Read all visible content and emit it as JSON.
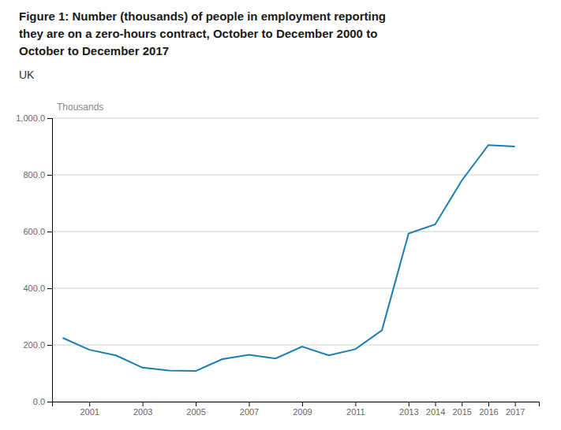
{
  "chart_data": {
    "type": "line",
    "title": [
      "Figure 1: Number (thousands) of people in employment reporting",
      "they are on a zero-hours contract, October to December 2000 to",
      "October to December 2017"
    ],
    "subtitle": "UK",
    "ylabel": "Thousands",
    "x": [
      2000,
      2001,
      2002,
      2003,
      2004,
      2005,
      2006,
      2007,
      2008,
      2009,
      2010,
      2011,
      2012,
      2013,
      2014,
      2015,
      2016,
      2017
    ],
    "values": [
      225,
      183,
      163,
      120,
      110,
      108,
      150,
      165,
      152,
      194,
      163,
      185,
      252,
      593,
      625,
      780,
      905,
      900
    ],
    "color": "#1b7db5",
    "xlim": [
      1999.6,
      2017.9
    ],
    "xticks": [
      2001,
      2003,
      2005,
      2007,
      2009,
      2011,
      2013,
      2014,
      2015,
      2016,
      2017
    ],
    "ylim": [
      0,
      1000
    ],
    "yticks": [
      {
        "value": 0,
        "label": "0.0"
      },
      {
        "value": 200,
        "label": "200.0"
      },
      {
        "value": 400,
        "label": "400.0"
      },
      {
        "value": 600,
        "label": "600.0"
      },
      {
        "value": 800,
        "label": "800.0"
      },
      {
        "value": 1000,
        "label": "1,000.0"
      }
    ],
    "grid": true
  }
}
